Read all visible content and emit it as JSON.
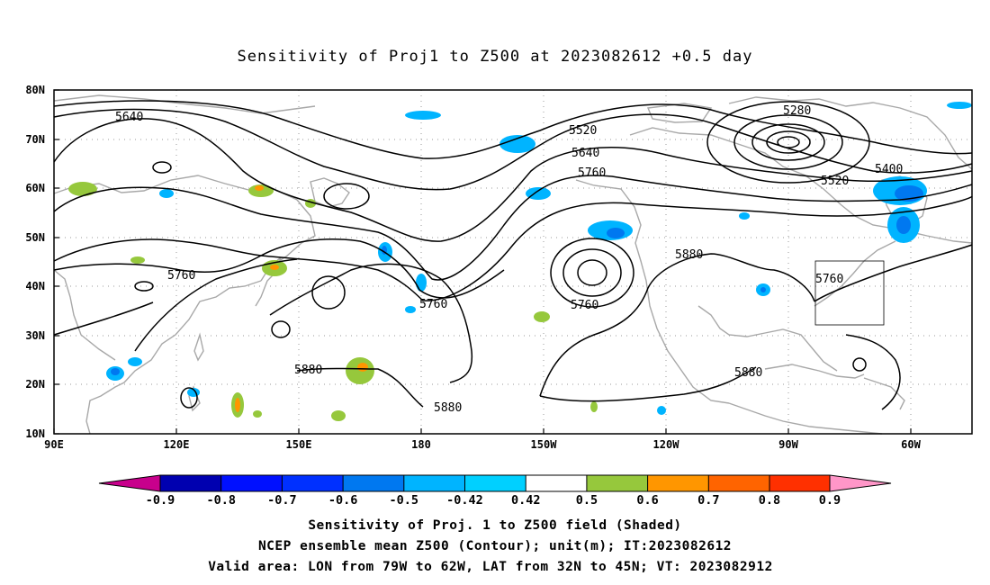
{
  "title": "Sensitivity of Proj1 to Z500 at 2023082612 +0.5 day",
  "map": {
    "lat_labels": [
      "80N",
      "70N",
      "60N",
      "50N",
      "40N",
      "30N",
      "20N",
      "10N"
    ],
    "lon_labels": [
      "90E",
      "120E",
      "150E",
      "180",
      "150W",
      "120W",
      "90W",
      "60W"
    ],
    "contour_labels": [
      "5640",
      "5520",
      "5640",
      "5760",
      "5280",
      "5400",
      "5520",
      "5760",
      "5760",
      "5760",
      "5760",
      "5880",
      "5880",
      "5880",
      "5880"
    ],
    "contour_unit": "m",
    "valid_area_box": {
      "lon_from": "79W",
      "lon_to": "62W",
      "lat_from": "32N",
      "lat_to": "45N"
    }
  },
  "colorbar": {
    "labels": [
      "-0.9",
      "-0.8",
      "-0.7",
      "-0.6",
      "-0.5",
      "-0.42",
      "0.42",
      "0.5",
      "0.6",
      "0.7",
      "0.8",
      "0.9"
    ],
    "colors": [
      "#c8008c",
      "#0000b0",
      "#0010ff",
      "#0030ff",
      "#0078f0",
      "#00b4ff",
      "#00d0ff",
      "#ffffff",
      "#96c83c",
      "#ff9600",
      "#ff6400",
      "#ff3000",
      "#ff0000",
      "#ff96c8"
    ]
  },
  "caption": {
    "line1": "Sensitivity of Proj. 1 to Z500 field (Shaded)",
    "line2": "NCEP ensemble mean Z500 (Contour); unit(m); IT:2023082612",
    "line3": "Valid area: LON from 79W to 62W, LAT from 32N to 45N; VT: 2023082912"
  }
}
